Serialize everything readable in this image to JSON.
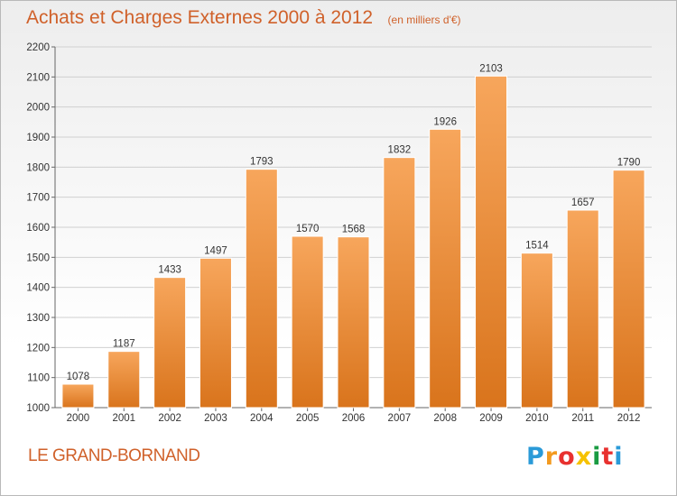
{
  "header": {
    "title": "Achats et Charges Externes 2000 à 2012",
    "unit": "(en milliers d'€)"
  },
  "footer": {
    "city": "LE GRAND-BORNAND",
    "brand": "Proxiti",
    "brand_colors": [
      "#2a9ad8",
      "#f39a1f",
      "#e8312f",
      "#f6c200",
      "#1a9b42",
      "#e8312f",
      "#2a9ad8"
    ]
  },
  "colors": {
    "bar_top": "#f7a65c",
    "bar_bottom": "#d9741c",
    "title": "#d0612a",
    "grid": "#d0d0d0"
  },
  "chart_data": {
    "type": "bar",
    "categories": [
      "2000",
      "2001",
      "2002",
      "2003",
      "2004",
      "2005",
      "2006",
      "2007",
      "2008",
      "2009",
      "2010",
      "2011",
      "2012"
    ],
    "values": [
      1078,
      1187,
      1433,
      1497,
      1793,
      1570,
      1568,
      1832,
      1926,
      2103,
      1514,
      1657,
      1790
    ],
    "ylim": [
      1000,
      2200
    ],
    "yticks": [
      1000,
      1100,
      1200,
      1300,
      1400,
      1500,
      1600,
      1700,
      1800,
      1900,
      2000,
      2100,
      2200
    ],
    "grid": true,
    "data_labels": true
  }
}
